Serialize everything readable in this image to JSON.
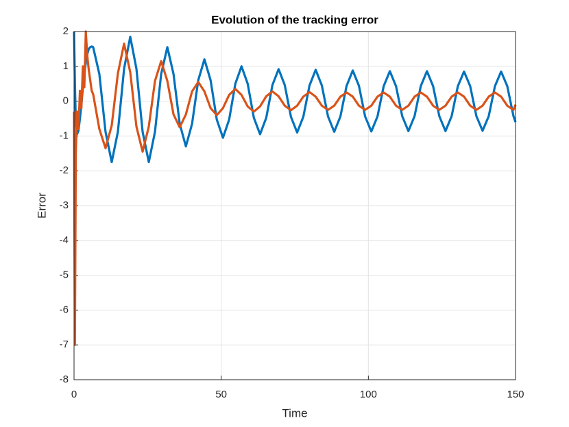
{
  "chart_data": {
    "type": "line",
    "title": "Evolution of the tracking error",
    "xlabel": "Time",
    "ylabel": "Error",
    "xlim": [
      0,
      150
    ],
    "ylim": [
      -8,
      2
    ],
    "xticks": [
      0,
      50,
      100,
      150
    ],
    "yticks": [
      -8,
      -7,
      -6,
      -5,
      -4,
      -3,
      -2,
      -1,
      0,
      1,
      2
    ],
    "grid": true,
    "x": [
      0,
      0.3,
      0.6,
      1,
      1.5,
      2,
      2.5,
      3,
      3.5,
      4,
      4.5,
      5,
      5.5,
      6,
      6.5,
      8.6,
      10.7,
      12.8,
      14.9,
      17.0,
      19.1,
      21.2,
      23.3,
      25.4,
      27.5,
      29.6,
      31.7,
      33.8,
      35.9,
      38.0,
      40.1,
      42.2,
      44.3,
      46.4,
      48.5,
      50.6,
      52.7,
      54.8,
      56.9,
      59.0,
      61.1,
      63.2,
      65.3,
      67.4,
      69.5,
      71.6,
      73.7,
      75.8,
      77.9,
      80.0,
      82.1,
      84.2,
      86.3,
      88.4,
      90.5,
      92.6,
      94.7,
      96.8,
      98.9,
      101.0,
      103.1,
      105.2,
      107.3,
      109.4,
      111.5,
      113.6,
      115.7,
      117.8,
      119.9,
      122.0,
      124.1,
      126.2,
      128.3,
      130.4,
      132.5,
      134.6,
      136.7,
      138.8,
      140.9,
      143.0,
      145.1,
      147.2,
      149.3,
      150
    ],
    "series": [
      {
        "color": "#0072bd",
        "values": [
          2,
          0.5,
          -0.6,
          -0.95,
          -0.85,
          -0.5,
          -0.1,
          0.4,
          0.8,
          1.1,
          1.35,
          1.5,
          1.55,
          1.57,
          1.55,
          0.78,
          -0.88,
          -1.75,
          -0.88,
          0.93,
          1.85,
          0.93,
          -0.88,
          -1.75,
          -0.88,
          0.78,
          1.55,
          0.78,
          -0.65,
          -1.3,
          -0.65,
          0.6,
          1.2,
          0.6,
          -0.53,
          -1.05,
          -0.53,
          0.5,
          1.0,
          0.5,
          -0.48,
          -0.95,
          -0.48,
          0.46,
          0.92,
          0.46,
          -0.45,
          -0.9,
          -0.45,
          0.45,
          0.9,
          0.45,
          -0.44,
          -0.88,
          -0.44,
          0.44,
          0.88,
          0.44,
          -0.44,
          -0.87,
          -0.44,
          0.43,
          0.86,
          0.43,
          -0.43,
          -0.86,
          -0.43,
          0.43,
          0.86,
          0.43,
          -0.43,
          -0.86,
          -0.43,
          0.43,
          0.85,
          0.43,
          -0.43,
          -0.85,
          -0.43,
          0.43,
          0.85,
          0.43,
          -0.43,
          -0.6
        ]
      },
      {
        "color": "#d95319",
        "values": [
          -0.3,
          -7,
          -1.5,
          -0.3,
          -0.8,
          0.3,
          -0.2,
          1.0,
          0.4,
          2.0,
          1.3,
          0.9,
          0.6,
          0.3,
          0.2,
          -0.8,
          -1.35,
          -0.7,
          0.8,
          1.65,
          0.83,
          -0.73,
          -1.45,
          -0.73,
          0.58,
          1.15,
          0.58,
          -0.38,
          -0.75,
          -0.38,
          0.28,
          0.55,
          0.28,
          -0.2,
          -0.4,
          -0.2,
          0.18,
          0.35,
          0.18,
          -0.15,
          -0.3,
          -0.15,
          0.14,
          0.28,
          0.14,
          -0.13,
          -0.26,
          -0.13,
          0.13,
          0.26,
          0.13,
          -0.13,
          -0.25,
          -0.13,
          0.13,
          0.25,
          0.13,
          -0.13,
          -0.25,
          -0.13,
          0.13,
          0.25,
          0.13,
          -0.13,
          -0.25,
          -0.13,
          0.13,
          0.25,
          0.13,
          -0.13,
          -0.25,
          -0.13,
          0.13,
          0.25,
          0.13,
          -0.13,
          -0.25,
          -0.13,
          0.13,
          0.25,
          0.13,
          -0.13,
          -0.25,
          -0.1
        ]
      }
    ]
  }
}
